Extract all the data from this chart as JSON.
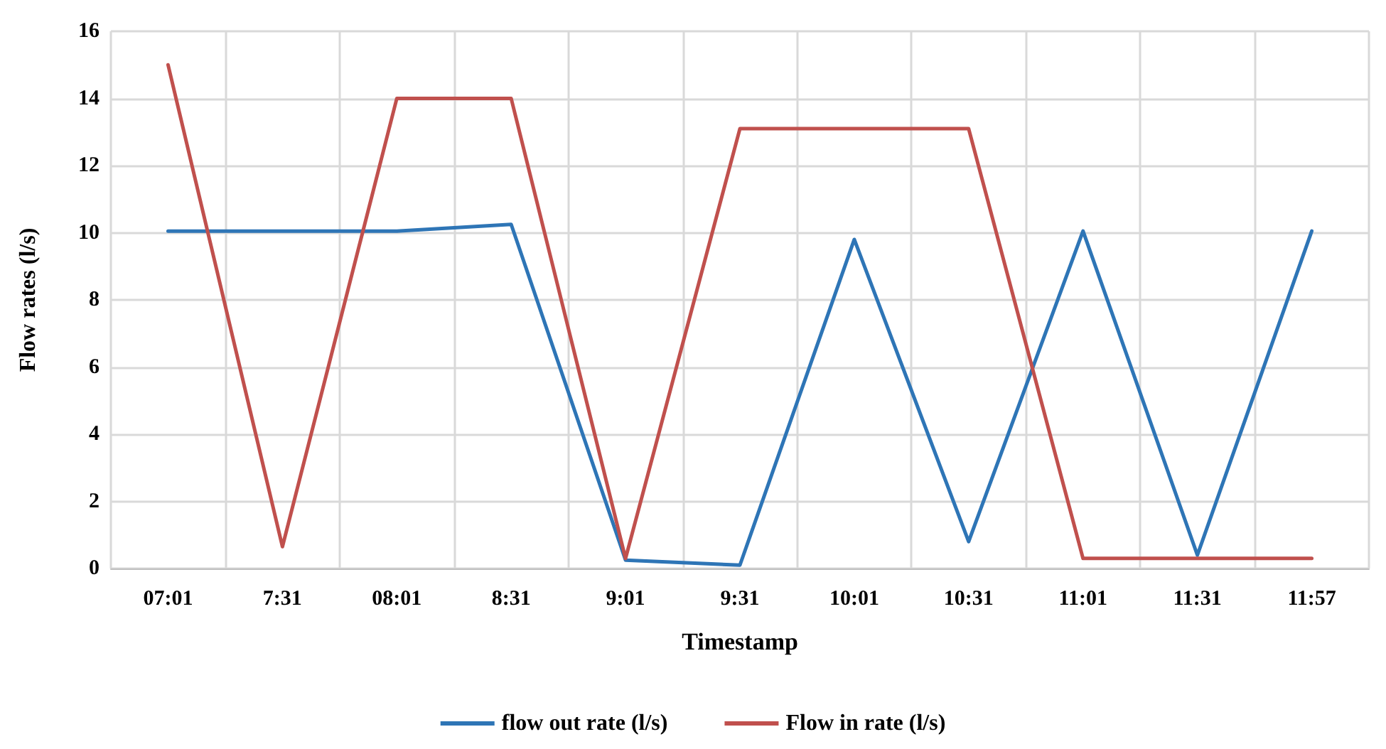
{
  "chart_data": {
    "type": "line",
    "xlabel": "Timestamp",
    "ylabel": "Flow rates (l/s)",
    "categories": [
      "07:01",
      "7:31",
      "08:01",
      "8:31",
      "9:01",
      "9:31",
      "10:01",
      "10:31",
      "11:01",
      "11:31",
      "11:57"
    ],
    "series": [
      {
        "name": "flow out rate (l/s)",
        "color": "#2e75b6",
        "values": [
          10.05,
          10.05,
          10.05,
          10.25,
          0.25,
          0.1,
          9.8,
          0.8,
          10.05,
          0.4,
          10.05
        ]
      },
      {
        "name": "Flow in rate (l/s)",
        "color": "#c0504d",
        "values": [
          15,
          0.65,
          14,
          14,
          0.3,
          13.1,
          13.1,
          13.1,
          0.3,
          0.3,
          0.3
        ]
      }
    ],
    "ylim": [
      0,
      16
    ],
    "yticks": [
      0,
      2,
      4,
      6,
      8,
      10,
      12,
      14,
      16
    ],
    "grid": true,
    "legend": "bottom",
    "marker": "none",
    "line_style": "solid"
  }
}
